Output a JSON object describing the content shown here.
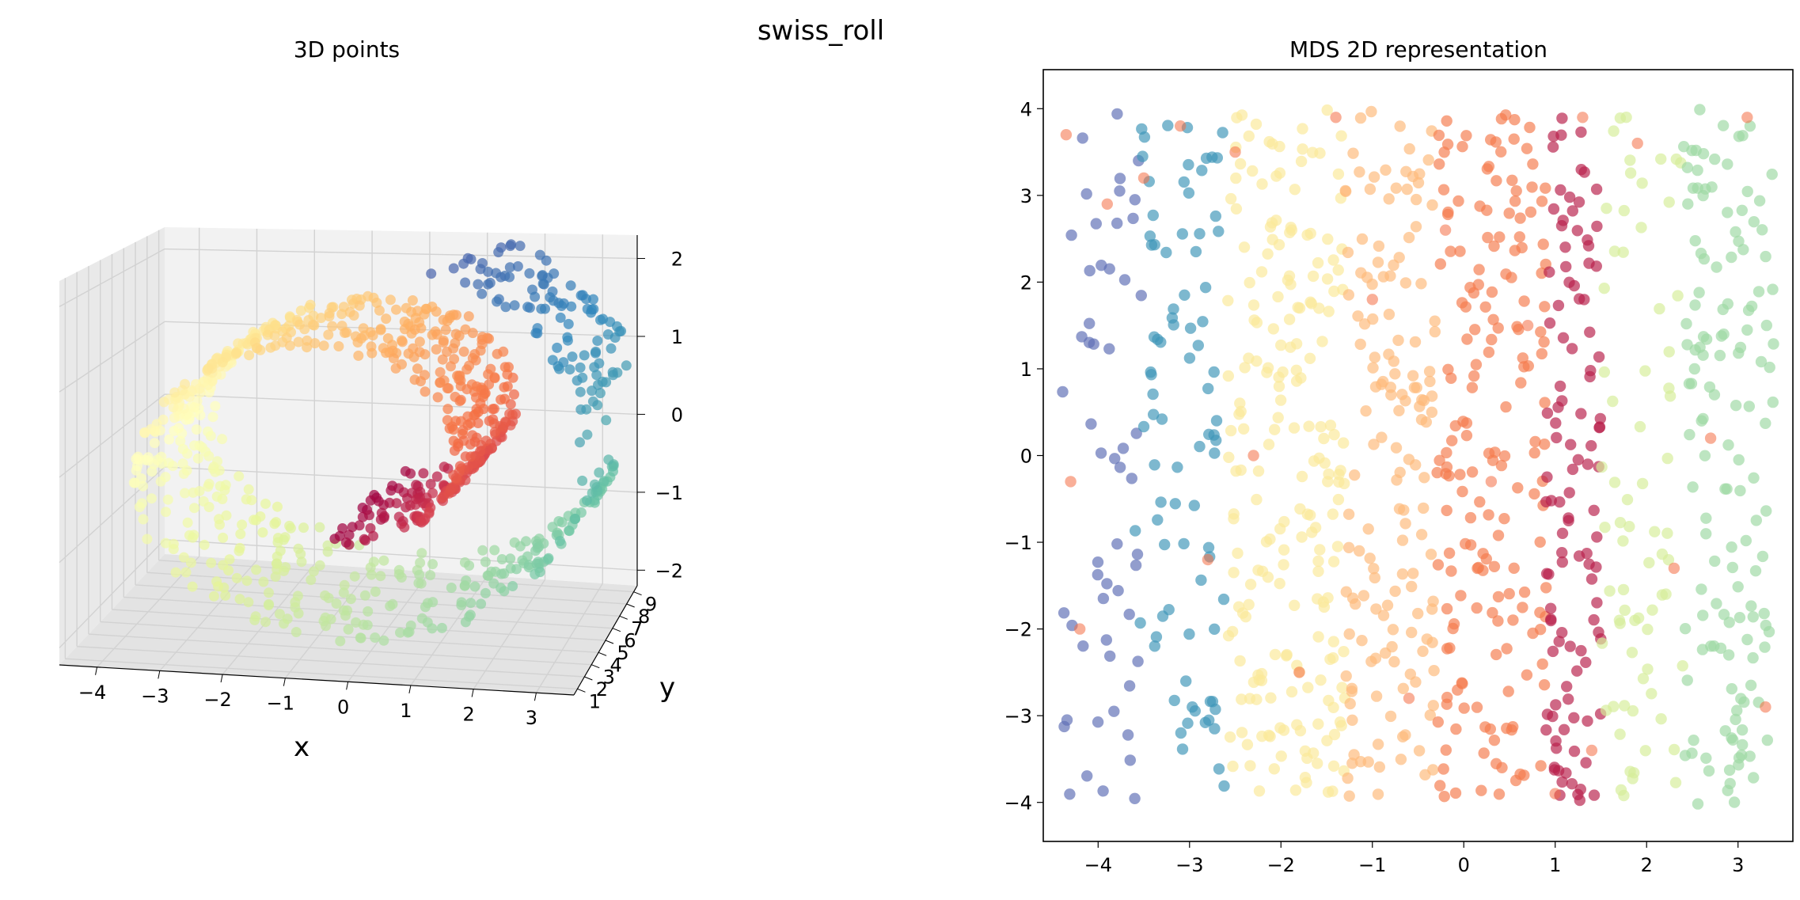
{
  "figure": {
    "title": "swiss_roll"
  },
  "chart_data": [
    {
      "type": "scatter3d",
      "title": "3D points",
      "xlabel": "x",
      "ylabel": "y",
      "zlabel": "",
      "xlim": [
        -4.6,
        3.6
      ],
      "ylim": [
        0.5,
        9.5
      ],
      "zlim": [
        -2.2,
        2.3
      ],
      "xticks": [
        -4,
        -3,
        -2,
        -1,
        0,
        1,
        2,
        3
      ],
      "yticks": [
        1,
        2,
        3,
        4,
        5,
        6,
        7,
        8,
        9
      ],
      "zticks": [
        -2,
        -1,
        0,
        1,
        2
      ],
      "grid": true,
      "colormap": "Spectral",
      "color_encodes": "position along the roll",
      "n_points": 1000,
      "sample_points": [
        {
          "x": -0.6,
          "y": 5.0,
          "z": -1.6
        },
        {
          "x": 0.5,
          "y": 4.5,
          "z": -0.9
        },
        {
          "x": 1.2,
          "y": 5.0,
          "z": 0.4
        },
        {
          "x": 0.4,
          "y": 5.5,
          "z": 1.2
        },
        {
          "x": -1.6,
          "y": 5.0,
          "z": 0.6
        },
        {
          "x": -2.2,
          "y": 4.5,
          "z": -0.6
        },
        {
          "x": -0.5,
          "y": 5.0,
          "z": -2.0
        },
        {
          "x": 1.8,
          "y": 5.0,
          "z": -1.6
        },
        {
          "x": 3.1,
          "y": 5.0,
          "z": 0.0
        },
        {
          "x": 1.8,
          "y": 5.0,
          "z": 1.7
        },
        {
          "x": -1.3,
          "y": 5.5,
          "z": 2.0
        },
        {
          "x": -3.6,
          "y": 5.0,
          "z": 1.0
        },
        {
          "x": -4.2,
          "y": 5.0,
          "z": 0.2
        }
      ]
    },
    {
      "type": "scatter",
      "title": "MDS 2D representation",
      "xlabel": "",
      "ylabel": "",
      "xlim": [
        -4.6,
        3.6
      ],
      "ylim": [
        -4.45,
        4.45
      ],
      "xticks": [
        -4,
        -3,
        -2,
        -1,
        0,
        1,
        2,
        3
      ],
      "yticks": [
        -4,
        -3,
        -2,
        -1,
        0,
        1,
        2,
        3,
        4
      ],
      "grid": false,
      "colormap": "Spectral",
      "n_points": 1000,
      "color_bands": [
        {
          "x_range": [
            -4.4,
            -3.5
          ],
          "color": "#5e6fb6"
        },
        {
          "x_range": [
            -3.6,
            -2.6
          ],
          "color": "#3f96b8"
        },
        {
          "x_range": [
            -2.6,
            -1.3
          ],
          "color": "#fbe99a"
        },
        {
          "x_range": [
            -1.3,
            -0.3
          ],
          "color": "#fdb97a"
        },
        {
          "x_range": [
            -0.3,
            0.9
          ],
          "color": "#f57c4e"
        },
        {
          "x_range": [
            0.9,
            1.5
          ],
          "color": "#b8214b"
        },
        {
          "x_range": [
            1.5,
            2.4
          ],
          "color": "#d6ee9a"
        },
        {
          "x_range": [
            2.4,
            3.4
          ],
          "color": "#9ed8a4"
        }
      ],
      "sample_points": [
        {
          "x": -4.35,
          "y": 3.7
        },
        {
          "x": -4.3,
          "y": -0.3
        },
        {
          "x": -4.2,
          "y": -2.0
        },
        {
          "x": -3.9,
          "y": 2.9
        },
        {
          "x": -3.5,
          "y": 3.2
        },
        {
          "x": -3.1,
          "y": 3.8
        },
        {
          "x": -2.8,
          "y": -1.2
        },
        {
          "x": -2.5,
          "y": 3.5
        },
        {
          "x": -2.3,
          "y": 0.0
        },
        {
          "x": -1.8,
          "y": -2.5
        },
        {
          "x": -1.4,
          "y": 3.9
        },
        {
          "x": -1.0,
          "y": 1.8
        },
        {
          "x": -0.6,
          "y": -2.8
        },
        {
          "x": -0.2,
          "y": 2.6
        },
        {
          "x": 0.3,
          "y": -0.3
        },
        {
          "x": 0.7,
          "y": 1.5
        },
        {
          "x": 1.0,
          "y": -3.9
        },
        {
          "x": 1.3,
          "y": 3.9
        },
        {
          "x": 1.4,
          "y": -3.4
        },
        {
          "x": 1.9,
          "y": 3.6
        },
        {
          "x": 2.3,
          "y": -1.3
        },
        {
          "x": 2.7,
          "y": 0.2
        },
        {
          "x": 3.1,
          "y": 3.9
        },
        {
          "x": 3.3,
          "y": -2.9
        }
      ]
    }
  ]
}
